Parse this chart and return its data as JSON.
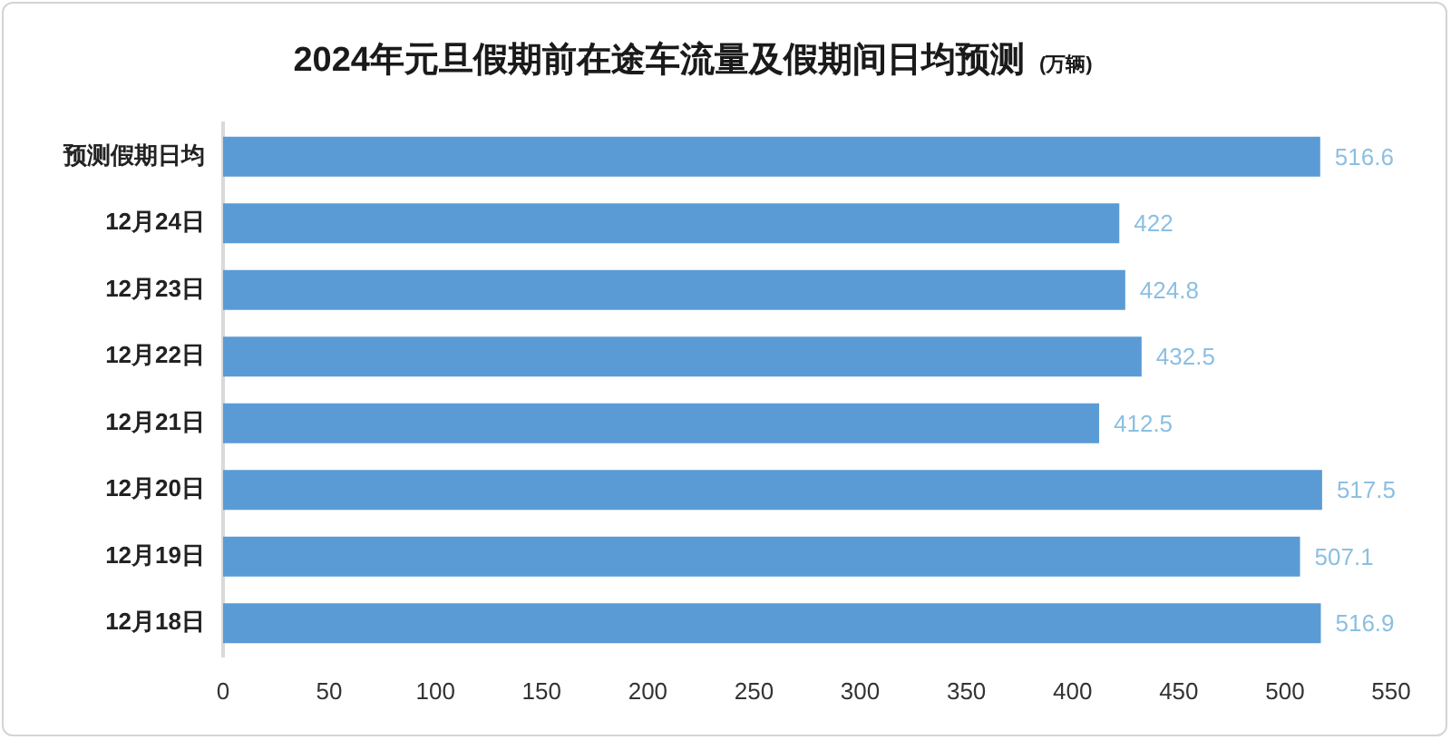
{
  "chart_data": {
    "type": "bar",
    "orientation": "horizontal",
    "title": "2024年元旦假期前在途车流量及假期间日均预测",
    "subtitle": "(万辆)",
    "categories": [
      "预测假期日均",
      "12月24日",
      "12月23日",
      "12月22日",
      "12月21日",
      "12月20日",
      "12月19日",
      "12月18日"
    ],
    "values": [
      516.6,
      422,
      424.8,
      432.5,
      412.5,
      517.5,
      507.1,
      516.9
    ],
    "color": "#5b9bd5",
    "xlim": [
      0,
      550
    ],
    "xticks": [
      0,
      50,
      100,
      150,
      200,
      250,
      300,
      350,
      400,
      450,
      500,
      550
    ],
    "data_labels": true
  }
}
